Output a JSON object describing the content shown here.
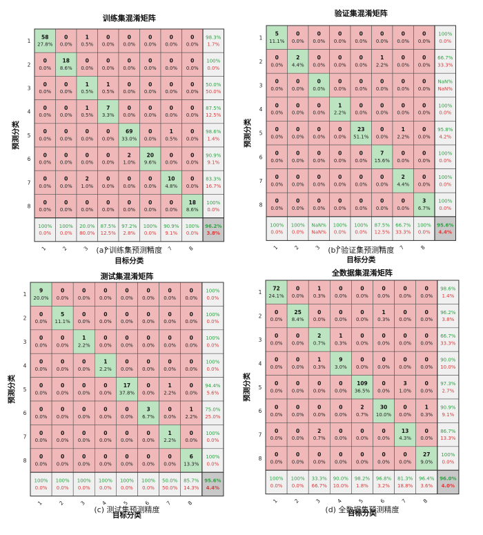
{
  "colors": {
    "diag": "#bce4c0",
    "off": "#f0b8b8",
    "summary": "#f0f0f0",
    "corner": "#c8c8c8",
    "green_text": "#2ea043",
    "red_text": "#d93a3a",
    "grid": "#555555"
  },
  "class_labels": [
    "1",
    "2",
    "3",
    "4",
    "5",
    "6",
    "7",
    "8"
  ],
  "chart_data": [
    {
      "type": "heatmap",
      "title": "训练集混淆矩阵",
      "xlabel": "目标分类",
      "ylabel": "预测分类",
      "caption": "(a) 训练集预测精度",
      "counts": [
        [
          58,
          0,
          1,
          0,
          0,
          0,
          0,
          0
        ],
        [
          0,
          18,
          0,
          0,
          0,
          0,
          0,
          0
        ],
        [
          0,
          0,
          1,
          1,
          0,
          0,
          0,
          0
        ],
        [
          0,
          0,
          1,
          7,
          0,
          0,
          0,
          0
        ],
        [
          0,
          0,
          0,
          0,
          69,
          0,
          1,
          0
        ],
        [
          0,
          0,
          0,
          0,
          2,
          20,
          0,
          0
        ],
        [
          0,
          0,
          2,
          0,
          0,
          0,
          10,
          0
        ],
        [
          0,
          0,
          0,
          0,
          0,
          0,
          0,
          18
        ]
      ],
      "percents": [
        [
          "27.8%",
          "0.0%",
          "0.5%",
          "0.0%",
          "0.0%",
          "0.0%",
          "0.0%",
          "0.0%"
        ],
        [
          "0.0%",
          "8.6%",
          "0.0%",
          "0.0%",
          "0.0%",
          "0.0%",
          "0.0%",
          "0.0%"
        ],
        [
          "0.0%",
          "0.0%",
          "0.5%",
          "0.5%",
          "0.0%",
          "0.0%",
          "0.0%",
          "0.0%"
        ],
        [
          "0.0%",
          "0.0%",
          "0.5%",
          "3.3%",
          "0.0%",
          "0.0%",
          "0.0%",
          "0.0%"
        ],
        [
          "0.0%",
          "0.0%",
          "0.0%",
          "0.0%",
          "33.0%",
          "0.0%",
          "0.5%",
          "0.0%"
        ],
        [
          "0.0%",
          "0.0%",
          "0.0%",
          "0.0%",
          "1.0%",
          "9.6%",
          "0.0%",
          "0.0%"
        ],
        [
          "0.0%",
          "0.0%",
          "1.0%",
          "0.0%",
          "0.0%",
          "0.0%",
          "4.8%",
          "0.0%"
        ],
        [
          "0.0%",
          "0.0%",
          "0.0%",
          "0.0%",
          "0.0%",
          "0.0%",
          "0.0%",
          "8.6%"
        ]
      ],
      "row_summary": [
        [
          "98.3%",
          "1.7%"
        ],
        [
          "100%",
          "0.0%"
        ],
        [
          "50.0%",
          "50.0%"
        ],
        [
          "87.5%",
          "12.5%"
        ],
        [
          "98.6%",
          "1.4%"
        ],
        [
          "90.9%",
          "9.1%"
        ],
        [
          "83.3%",
          "16.7%"
        ],
        [
          "100%",
          "0.0%"
        ]
      ],
      "col_summary": [
        [
          "100%",
          "0.0%"
        ],
        [
          "100%",
          "0.0%"
        ],
        [
          "20.0%",
          "80.0%"
        ],
        [
          "87.5%",
          "12.5%"
        ],
        [
          "97.2%",
          "2.8%"
        ],
        [
          "100%",
          "0.0%"
        ],
        [
          "90.9%",
          "9.1%"
        ],
        [
          "100%",
          "0.0%"
        ]
      ],
      "total": [
        "96.2%",
        "3.8%"
      ]
    },
    {
      "type": "heatmap",
      "title": "验证集混淆矩阵",
      "xlabel": "目标分类",
      "ylabel": "预测分类",
      "caption": "(b) 验证集预测精度",
      "counts": [
        [
          5,
          0,
          0,
          0,
          0,
          0,
          0,
          0
        ],
        [
          0,
          2,
          0,
          0,
          0,
          1,
          0,
          0
        ],
        [
          0,
          0,
          0,
          0,
          0,
          0,
          0,
          0
        ],
        [
          0,
          0,
          0,
          1,
          0,
          0,
          0,
          0
        ],
        [
          0,
          0,
          0,
          0,
          23,
          0,
          1,
          0
        ],
        [
          0,
          0,
          0,
          0,
          0,
          7,
          0,
          0
        ],
        [
          0,
          0,
          0,
          0,
          0,
          0,
          2,
          0
        ],
        [
          0,
          0,
          0,
          0,
          0,
          0,
          0,
          3
        ]
      ],
      "percents": [
        [
          "11.1%",
          "0.0%",
          "0.0%",
          "0.0%",
          "0.0%",
          "0.0%",
          "0.0%",
          "0.0%"
        ],
        [
          "0.0%",
          "4.4%",
          "0.0%",
          "0.0%",
          "0.0%",
          "2.2%",
          "0.0%",
          "0.0%"
        ],
        [
          "0.0%",
          "0.0%",
          "0.0%",
          "0.0%",
          "0.0%",
          "0.0%",
          "0.0%",
          "0.0%"
        ],
        [
          "0.0%",
          "0.0%",
          "0.0%",
          "2.2%",
          "0.0%",
          "0.0%",
          "0.0%",
          "0.0%"
        ],
        [
          "0.0%",
          "0.0%",
          "0.0%",
          "0.0%",
          "51.1%",
          "0.0%",
          "2.2%",
          "0.0%"
        ],
        [
          "0.0%",
          "0.0%",
          "0.0%",
          "0.0%",
          "0.0%",
          "15.6%",
          "0.0%",
          "0.0%"
        ],
        [
          "0.0%",
          "0.0%",
          "0.0%",
          "0.0%",
          "0.0%",
          "0.0%",
          "4.4%",
          "0.0%"
        ],
        [
          "0.0%",
          "0.0%",
          "0.0%",
          "0.0%",
          "0.0%",
          "0.0%",
          "0.0%",
          "6.7%"
        ]
      ],
      "row_summary": [
        [
          "100%",
          "0.0%"
        ],
        [
          "66.7%",
          "33.3%"
        ],
        [
          "NaN%",
          "NaN%"
        ],
        [
          "100%",
          "0.0%"
        ],
        [
          "95.8%",
          "4.2%"
        ],
        [
          "100%",
          "0.0%"
        ],
        [
          "100%",
          "0.0%"
        ],
        [
          "100%",
          "0.0%"
        ]
      ],
      "col_summary": [
        [
          "100%",
          "0.0%"
        ],
        [
          "100%",
          "0.0%"
        ],
        [
          "NaN%",
          "NaN%"
        ],
        [
          "100%",
          "0.0%"
        ],
        [
          "100%",
          "0.0%"
        ],
        [
          "87.5%",
          "12.5%"
        ],
        [
          "66.7%",
          "33.3%"
        ],
        [
          "100%",
          "0.0%"
        ]
      ],
      "total": [
        "95.6%",
        "4.4%"
      ]
    },
    {
      "type": "heatmap",
      "title": "测试集混淆矩阵",
      "xlabel": "目标分类",
      "ylabel": "预测分类",
      "caption": "(c) 测试集预测精度",
      "counts": [
        [
          9,
          0,
          0,
          0,
          0,
          0,
          0,
          0
        ],
        [
          0,
          5,
          0,
          0,
          0,
          0,
          0,
          0
        ],
        [
          0,
          0,
          1,
          0,
          0,
          0,
          0,
          0
        ],
        [
          0,
          0,
          0,
          1,
          0,
          0,
          0,
          0
        ],
        [
          0,
          0,
          0,
          0,
          17,
          0,
          1,
          0
        ],
        [
          0,
          0,
          0,
          0,
          0,
          3,
          0,
          1
        ],
        [
          0,
          0,
          0,
          0,
          0,
          0,
          1,
          0
        ],
        [
          0,
          0,
          0,
          0,
          0,
          0,
          0,
          6
        ]
      ],
      "percents": [
        [
          "20.0%",
          "0.0%",
          "0.0%",
          "0.0%",
          "0.0%",
          "0.0%",
          "0.0%",
          "0.0%"
        ],
        [
          "0.0%",
          "11.1%",
          "0.0%",
          "0.0%",
          "0.0%",
          "0.0%",
          "0.0%",
          "0.0%"
        ],
        [
          "0.0%",
          "0.0%",
          "2.2%",
          "0.0%",
          "0.0%",
          "0.0%",
          "0.0%",
          "0.0%"
        ],
        [
          "0.0%",
          "0.0%",
          "0.0%",
          "2.2%",
          "0.0%",
          "0.0%",
          "0.0%",
          "0.0%"
        ],
        [
          "0.0%",
          "0.0%",
          "0.0%",
          "0.0%",
          "37.8%",
          "0.0%",
          "2.2%",
          "0.0%"
        ],
        [
          "0.0%",
          "0.0%",
          "0.0%",
          "0.0%",
          "0.0%",
          "6.7%",
          "0.0%",
          "2.2%"
        ],
        [
          "0.0%",
          "0.0%",
          "0.0%",
          "0.0%",
          "0.0%",
          "0.0%",
          "2.2%",
          "0.0%"
        ],
        [
          "0.0%",
          "0.0%",
          "0.0%",
          "0.0%",
          "0.0%",
          "0.0%",
          "0.0%",
          "13.3%"
        ]
      ],
      "row_summary": [
        [
          "100%",
          "0.0%"
        ],
        [
          "100%",
          "0.0%"
        ],
        [
          "100%",
          "0.0%"
        ],
        [
          "100%",
          "0.0%"
        ],
        [
          "94.4%",
          "5.6%"
        ],
        [
          "75.0%",
          "25.0%"
        ],
        [
          "100%",
          "0.0%"
        ],
        [
          "100%",
          "0.0%"
        ]
      ],
      "col_summary": [
        [
          "100%",
          "0.0%"
        ],
        [
          "100%",
          "0.0%"
        ],
        [
          "100%",
          "0.0%"
        ],
        [
          "100%",
          "0.0%"
        ],
        [
          "100%",
          "0.0%"
        ],
        [
          "100%",
          "0.0%"
        ],
        [
          "50.0%",
          "50.0%"
        ],
        [
          "85.7%",
          "14.3%"
        ]
      ],
      "total": [
        "95.6%",
        "4.4%"
      ]
    },
    {
      "type": "heatmap",
      "title": "全数据集混淆矩阵",
      "xlabel": "目标分类",
      "ylabel": "预测分类",
      "caption": "(d) 全数据集预测精度",
      "counts": [
        [
          72,
          0,
          1,
          0,
          0,
          0,
          0,
          0
        ],
        [
          0,
          25,
          0,
          0,
          0,
          1,
          0,
          0
        ],
        [
          0,
          0,
          2,
          1,
          0,
          0,
          0,
          0
        ],
        [
          0,
          0,
          1,
          9,
          0,
          0,
          0,
          0
        ],
        [
          0,
          0,
          0,
          0,
          109,
          0,
          3,
          0
        ],
        [
          0,
          0,
          0,
          0,
          2,
          30,
          0,
          1
        ],
        [
          0,
          0,
          2,
          0,
          0,
          0,
          13,
          0
        ],
        [
          0,
          0,
          0,
          0,
          0,
          0,
          0,
          27
        ]
      ],
      "percents": [
        [
          "24.1%",
          "0.0%",
          "0.3%",
          "0.0%",
          "0.0%",
          "0.0%",
          "0.0%",
          "0.0%"
        ],
        [
          "0.0%",
          "8.4%",
          "0.0%",
          "0.0%",
          "0.0%",
          "0.3%",
          "0.0%",
          "0.0%"
        ],
        [
          "0.0%",
          "0.0%",
          "0.7%",
          "0.3%",
          "0.0%",
          "0.0%",
          "0.0%",
          "0.0%"
        ],
        [
          "0.0%",
          "0.0%",
          "0.3%",
          "3.0%",
          "0.0%",
          "0.0%",
          "0.0%",
          "0.0%"
        ],
        [
          "0.0%",
          "0.0%",
          "0.0%",
          "0.0%",
          "36.5%",
          "0.0%",
          "1.0%",
          "0.0%"
        ],
        [
          "0.0%",
          "0.0%",
          "0.0%",
          "0.0%",
          "0.7%",
          "10.0%",
          "0.0%",
          "0.3%"
        ],
        [
          "0.0%",
          "0.0%",
          "0.7%",
          "0.0%",
          "0.0%",
          "0.0%",
          "4.3%",
          "0.0%"
        ],
        [
          "0.0%",
          "0.0%",
          "0.0%",
          "0.0%",
          "0.0%",
          "0.0%",
          "0.0%",
          "9.0%"
        ]
      ],
      "row_summary": [
        [
          "98.6%",
          "1.4%"
        ],
        [
          "96.2%",
          "3.8%"
        ],
        [
          "66.7%",
          "33.3%"
        ],
        [
          "90.0%",
          "10.0%"
        ],
        [
          "97.3%",
          "2.7%"
        ],
        [
          "90.9%",
          "9.1%"
        ],
        [
          "86.7%",
          "13.3%"
        ],
        [
          "100%",
          "0.0%"
        ]
      ],
      "col_summary": [
        [
          "100%",
          "0.0%"
        ],
        [
          "100%",
          "0.0%"
        ],
        [
          "33.3%",
          "66.7%"
        ],
        [
          "90.0%",
          "10.0%"
        ],
        [
          "98.2%",
          "1.8%"
        ],
        [
          "96.8%",
          "3.2%"
        ],
        [
          "81.3%",
          "18.8%"
        ],
        [
          "96.4%",
          "3.6%"
        ]
      ],
      "total": [
        "96.0%",
        "4.0%"
      ]
    }
  ]
}
